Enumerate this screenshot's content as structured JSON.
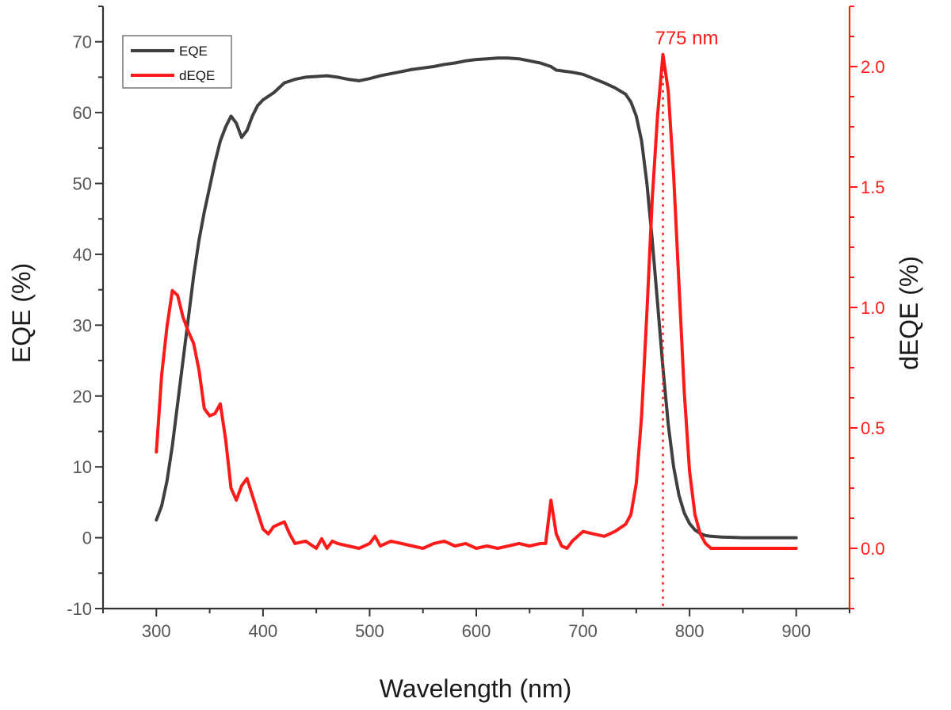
{
  "chart_data": {
    "type": "line",
    "xlabel": "Wavelength (nm)",
    "ylabel": "EQE (%)",
    "y2label": "dEQE (%)",
    "xlim": [
      250,
      950
    ],
    "ylim": [
      -10,
      75
    ],
    "y2lim": [
      -0.25,
      2.25
    ],
    "xticks": [
      300,
      400,
      500,
      600,
      700,
      800,
      900
    ],
    "yticks": [
      -10,
      0,
      10,
      20,
      30,
      40,
      50,
      60,
      70
    ],
    "y2ticks": [
      0.0,
      0.5,
      1.0,
      1.5,
      2.0
    ],
    "xtick_labels": [
      "300",
      "400",
      "500",
      "600",
      "700",
      "800",
      "900"
    ],
    "ytick_labels": [
      "-10",
      "0",
      "10",
      "20",
      "30",
      "40",
      "50",
      "60",
      "70"
    ],
    "y2tick_labels": [
      "0.0",
      "0.5",
      "1.0",
      "1.5",
      "2.0"
    ],
    "legend_placement": "top-left",
    "grid": false,
    "annotation": {
      "text": "775 nm",
      "x": 775
    },
    "colors": {
      "eqe": "#3f3f3f",
      "deqe": "#ff1a1a",
      "axis": "#333333"
    },
    "series": [
      {
        "name": "EQE",
        "axis": "left",
        "x": [
          300,
          305,
          310,
          315,
          320,
          325,
          330,
          335,
          340,
          345,
          350,
          355,
          360,
          365,
          370,
          375,
          380,
          385,
          390,
          395,
          400,
          410,
          420,
          430,
          440,
          450,
          460,
          470,
          480,
          490,
          500,
          510,
          520,
          530,
          540,
          550,
          560,
          570,
          580,
          590,
          600,
          610,
          620,
          630,
          640,
          650,
          660,
          670,
          675,
          680,
          690,
          700,
          710,
          720,
          730,
          740,
          745,
          750,
          755,
          760,
          765,
          770,
          775,
          780,
          785,
          790,
          795,
          800,
          805,
          810,
          815,
          820,
          830,
          840,
          850,
          900
        ],
        "values": [
          2.5,
          4.5,
          8,
          13,
          19,
          25,
          31,
          37,
          42,
          46,
          49.5,
          53,
          56,
          58,
          59.5,
          58.5,
          56.5,
          57.5,
          59.5,
          61,
          61.8,
          62.8,
          64.2,
          64.7,
          65.0,
          65.1,
          65.2,
          65.0,
          64.7,
          64.5,
          64.8,
          65.2,
          65.5,
          65.8,
          66.1,
          66.3,
          66.5,
          66.8,
          67.0,
          67.3,
          67.5,
          67.6,
          67.7,
          67.7,
          67.6,
          67.3,
          67.0,
          66.5,
          66.0,
          65.9,
          65.7,
          65.4,
          64.8,
          64.2,
          63.5,
          62.6,
          61.5,
          59.5,
          56.0,
          50.0,
          42.0,
          33.0,
          24.0,
          16.0,
          10.0,
          6.0,
          3.5,
          2.0,
          1.1,
          0.6,
          0.3,
          0.2,
          0.1,
          0.05,
          0.0,
          0.0
        ]
      },
      {
        "name": "dEQE",
        "axis": "right",
        "x": [
          300,
          305,
          310,
          315,
          320,
          325,
          330,
          335,
          340,
          345,
          350,
          355,
          360,
          365,
          370,
          375,
          380,
          385,
          390,
          395,
          400,
          405,
          410,
          415,
          420,
          425,
          430,
          440,
          450,
          455,
          460,
          465,
          470,
          480,
          490,
          500,
          505,
          510,
          520,
          530,
          540,
          550,
          560,
          570,
          580,
          590,
          600,
          610,
          620,
          630,
          640,
          650,
          660,
          665,
          670,
          675,
          680,
          685,
          690,
          700,
          710,
          720,
          730,
          740,
          745,
          750,
          755,
          760,
          765,
          770,
          775,
          780,
          785,
          790,
          795,
          800,
          805,
          810,
          815,
          820,
          830,
          850,
          900
        ],
        "values": [
          0.4,
          0.72,
          0.92,
          1.07,
          1.05,
          0.96,
          0.9,
          0.85,
          0.74,
          0.58,
          0.55,
          0.56,
          0.6,
          0.45,
          0.25,
          0.2,
          0.26,
          0.29,
          0.22,
          0.15,
          0.08,
          0.06,
          0.09,
          0.1,
          0.11,
          0.06,
          0.02,
          0.03,
          0.0,
          0.04,
          0.0,
          0.03,
          0.02,
          0.01,
          0.0,
          0.02,
          0.05,
          0.01,
          0.03,
          0.02,
          0.01,
          0.0,
          0.02,
          0.03,
          0.01,
          0.02,
          0.0,
          0.01,
          0.0,
          0.01,
          0.02,
          0.01,
          0.02,
          0.02,
          0.2,
          0.06,
          0.01,
          0.0,
          0.03,
          0.07,
          0.06,
          0.05,
          0.07,
          0.1,
          0.14,
          0.27,
          0.55,
          0.98,
          1.45,
          1.8,
          2.05,
          1.9,
          1.55,
          1.1,
          0.65,
          0.32,
          0.14,
          0.06,
          0.02,
          0.0,
          0.0,
          0.0,
          0.0
        ]
      }
    ]
  }
}
